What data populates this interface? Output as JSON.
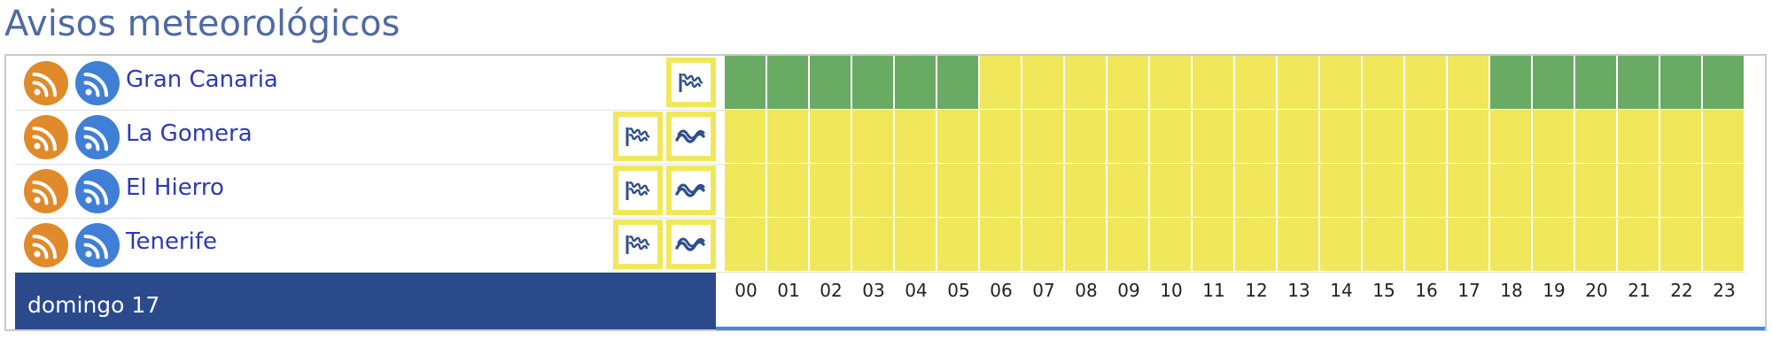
{
  "page": {
    "title": "Avisos meteorológicos"
  },
  "colors": {
    "title": "#4e6aa3",
    "link": "#2e3ab3",
    "green": "#6aab64",
    "yellow": "#f0e85a",
    "date_bar": "#2a4a8c",
    "rss_orange": "#e08a2b",
    "rss_blue": "#3f7fd6"
  },
  "regions": [
    {
      "name": "Gran Canaria",
      "warning_icons": [
        "wind-icon"
      ],
      "hourly_levels": [
        "green",
        "green",
        "green",
        "green",
        "green",
        "green",
        "yellow",
        "yellow",
        "yellow",
        "yellow",
        "yellow",
        "yellow",
        "yellow",
        "yellow",
        "yellow",
        "yellow",
        "yellow",
        "yellow",
        "green",
        "green",
        "green",
        "green",
        "green",
        "green"
      ]
    },
    {
      "name": "La Gomera",
      "warning_icons": [
        "wind-icon",
        "coastal-icon"
      ],
      "hourly_levels": [
        "yellow",
        "yellow",
        "yellow",
        "yellow",
        "yellow",
        "yellow",
        "yellow",
        "yellow",
        "yellow",
        "yellow",
        "yellow",
        "yellow",
        "yellow",
        "yellow",
        "yellow",
        "yellow",
        "yellow",
        "yellow",
        "yellow",
        "yellow",
        "yellow",
        "yellow",
        "yellow",
        "yellow"
      ]
    },
    {
      "name": "El Hierro",
      "warning_icons": [
        "wind-icon",
        "coastal-icon"
      ],
      "hourly_levels": [
        "yellow",
        "yellow",
        "yellow",
        "yellow",
        "yellow",
        "yellow",
        "yellow",
        "yellow",
        "yellow",
        "yellow",
        "yellow",
        "yellow",
        "yellow",
        "yellow",
        "yellow",
        "yellow",
        "yellow",
        "yellow",
        "yellow",
        "yellow",
        "yellow",
        "yellow",
        "yellow",
        "yellow"
      ]
    },
    {
      "name": "Tenerife",
      "warning_icons": [
        "wind-icon",
        "coastal-icon"
      ],
      "hourly_levels": [
        "yellow",
        "yellow",
        "yellow",
        "yellow",
        "yellow",
        "yellow",
        "yellow",
        "yellow",
        "yellow",
        "yellow",
        "yellow",
        "yellow",
        "yellow",
        "yellow",
        "yellow",
        "yellow",
        "yellow",
        "yellow",
        "yellow",
        "yellow",
        "yellow",
        "yellow",
        "yellow",
        "yellow"
      ]
    }
  ],
  "timeline": {
    "day_label": "domingo 17",
    "hours": [
      "00",
      "01",
      "02",
      "03",
      "04",
      "05",
      "06",
      "07",
      "08",
      "09",
      "10",
      "11",
      "12",
      "13",
      "14",
      "15",
      "16",
      "17",
      "18",
      "19",
      "20",
      "21",
      "22",
      "23"
    ]
  }
}
